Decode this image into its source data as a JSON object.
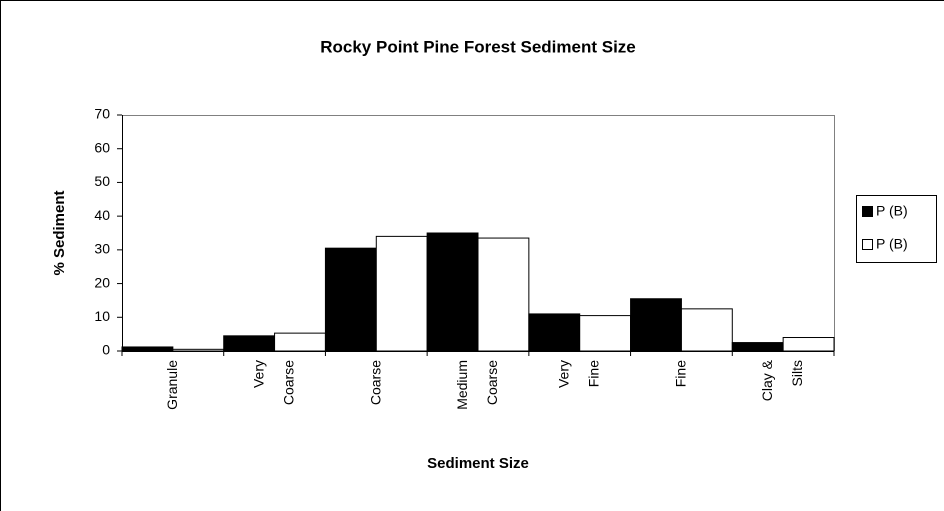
{
  "chart_data": {
    "type": "bar",
    "title": "Rocky Point Pine Forest Sediment Size",
    "x_label": "Sediment Size",
    "y_label": "% Sediment",
    "categories": [
      "Granule",
      "Very Coarse",
      "Coarse",
      "Medium Coarse",
      "Very Fine",
      "Fine",
      "Clay & Silts"
    ],
    "series": [
      {
        "name": "P (B)",
        "color": "#000000",
        "values": [
          1.2,
          4.5,
          30.5,
          35,
          11,
          15.5,
          2.5
        ]
      },
      {
        "name": "P (B)",
        "color": "#ffffff",
        "values": [
          0.5,
          5.3,
          34,
          33.5,
          10.5,
          12.5,
          4
        ]
      }
    ],
    "ylim": [
      0,
      70
    ],
    "yticks": [
      0,
      10,
      20,
      30,
      40,
      50,
      60,
      70
    ],
    "grid": false,
    "legend": "right"
  }
}
